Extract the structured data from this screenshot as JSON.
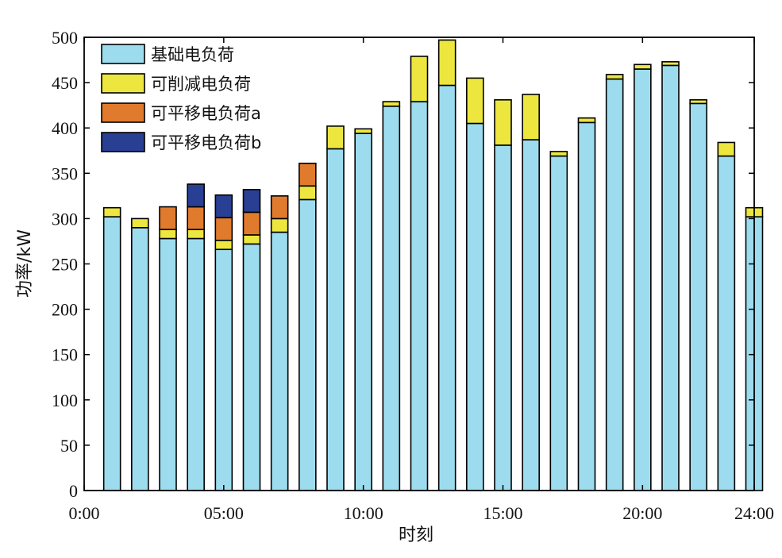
{
  "chart_data": {
    "type": "bar",
    "stacked": true,
    "title": "",
    "xlabel": "时刻",
    "ylabel": "功率/kW",
    "ylim": [
      0,
      500
    ],
    "xlim": [
      0,
      24
    ],
    "yticks": [
      0,
      50,
      100,
      150,
      200,
      250,
      300,
      350,
      400,
      450,
      500
    ],
    "xticks": [
      {
        "value": 0,
        "label": "0:00"
      },
      {
        "value": 5,
        "label": "05:00"
      },
      {
        "value": 10,
        "label": "10:00"
      },
      {
        "value": 15,
        "label": "15:00"
      },
      {
        "value": 20,
        "label": "20:00"
      },
      {
        "value": 24,
        "label": "24:00"
      }
    ],
    "x": [
      1,
      2,
      3,
      4,
      5,
      6,
      7,
      8,
      9,
      10,
      11,
      12,
      13,
      14,
      15,
      16,
      17,
      18,
      19,
      20,
      21,
      22,
      23,
      24
    ],
    "grid": false,
    "legend_position": "top-left",
    "series": [
      {
        "name": "基础电负荷",
        "color": "#9ddcee",
        "values": [
          302,
          290,
          278,
          278,
          266,
          272,
          285,
          321,
          377,
          394,
          424,
          429,
          447,
          405,
          381,
          387,
          369,
          406,
          454,
          465,
          469,
          427,
          369,
          302
        ]
      },
      {
        "name": "可削减电负荷",
        "color": "#ece63f",
        "values": [
          10,
          10,
          10,
          10,
          10,
          10,
          15,
          15,
          25,
          5,
          5,
          50,
          50,
          50,
          50,
          50,
          5,
          5,
          5,
          5,
          4,
          4,
          15,
          10
        ]
      },
      {
        "name": "可平移电负荷a",
        "color": "#e07b2e",
        "values": [
          0,
          0,
          25,
          25,
          25,
          25,
          25,
          25,
          0,
          0,
          0,
          0,
          0,
          0,
          0,
          0,
          0,
          0,
          0,
          0,
          0,
          0,
          0,
          0
        ]
      },
      {
        "name": "可平移电负荷b",
        "color": "#283f93",
        "values": [
          0,
          0,
          0,
          25,
          25,
          25,
          0,
          0,
          0,
          0,
          0,
          0,
          0,
          0,
          0,
          0,
          0,
          0,
          0,
          0,
          0,
          0,
          0,
          0
        ]
      }
    ]
  }
}
